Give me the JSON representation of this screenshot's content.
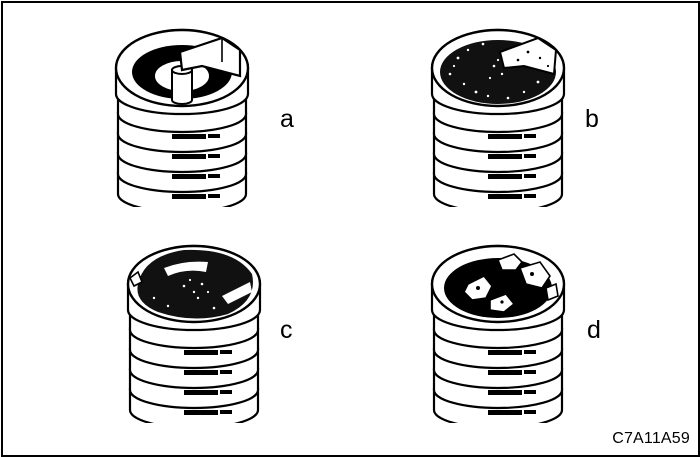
{
  "figure": {
    "code": "C7A11A59",
    "panels": [
      {
        "label": "a",
        "condition_icon": "clean-spark-plug-icon"
      },
      {
        "label": "b",
        "condition_icon": "carbon-fouled-spark-plug-icon"
      },
      {
        "label": "c",
        "condition_icon": "oil-deposit-spark-plug-icon"
      },
      {
        "label": "d",
        "condition_icon": "damaged-insulator-spark-plug-icon"
      }
    ]
  },
  "colors": {
    "ink": "#000000",
    "paper": "#ffffff"
  }
}
